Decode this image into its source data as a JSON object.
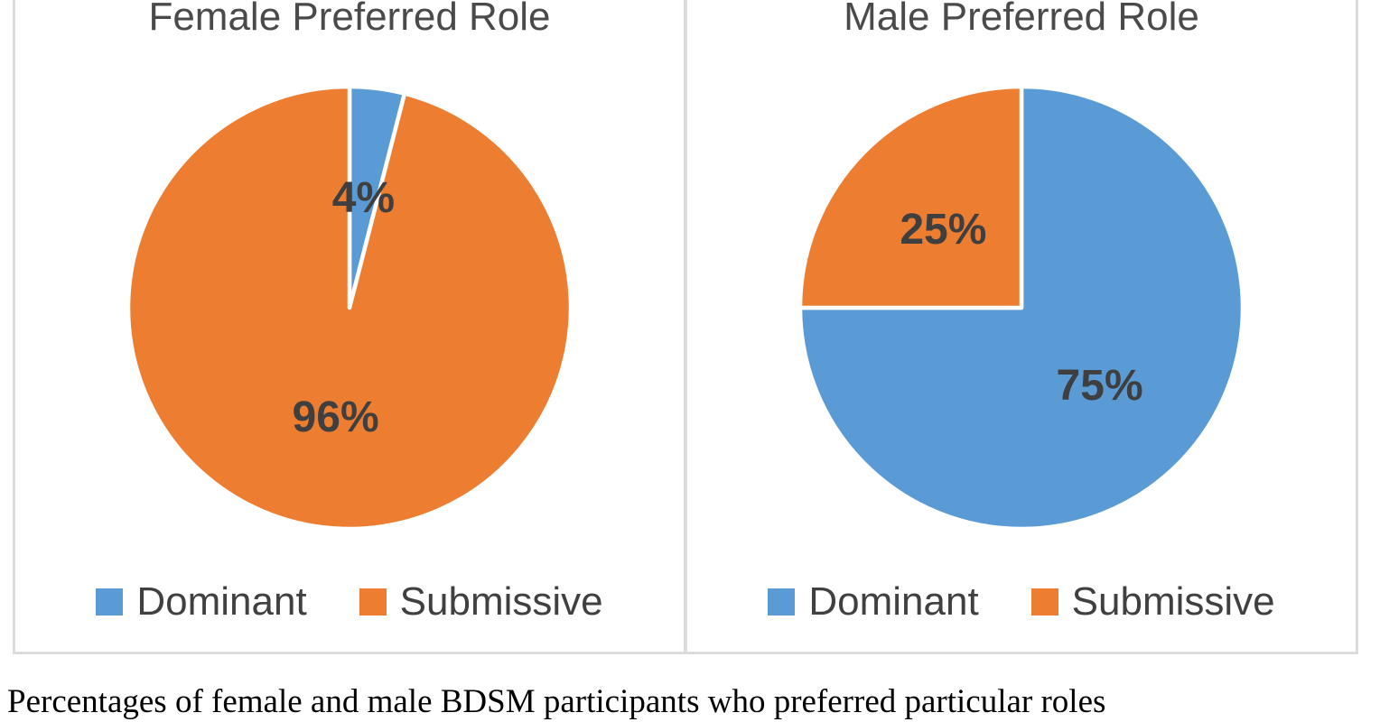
{
  "chart_data": [
    {
      "type": "pie",
      "title": "Female Preferred Role",
      "categories": [
        "Dominant",
        "Submissive"
      ],
      "values": [
        4,
        96
      ],
      "labels": [
        "4%",
        "96%"
      ],
      "colors": [
        "#5B9BD5",
        "#ED7D31"
      ],
      "start_angle_deg": 0,
      "direction": "clockwise",
      "legend_position": "bottom"
    },
    {
      "type": "pie",
      "title": "Male Preferred Role",
      "categories": [
        "Dominant",
        "Submissive"
      ],
      "values": [
        75,
        25
      ],
      "labels": [
        "75%",
        "25%"
      ],
      "colors": [
        "#5B9BD5",
        "#ED7D31"
      ],
      "start_angle_deg": 0,
      "direction": "clockwise",
      "legend_position": "bottom"
    }
  ],
  "caption": "Percentages of female and male BDSM participants who preferred particular roles",
  "colors": {
    "dominant_blue": "#5B9BD5",
    "submissive_orange": "#ED7D31",
    "data_label_text": "#3F3F3F",
    "title_text": "#4A4A4A",
    "legend_text": "#404040",
    "panel_border": "#DCDCDC",
    "slice_separator": "#FFFFFF"
  }
}
